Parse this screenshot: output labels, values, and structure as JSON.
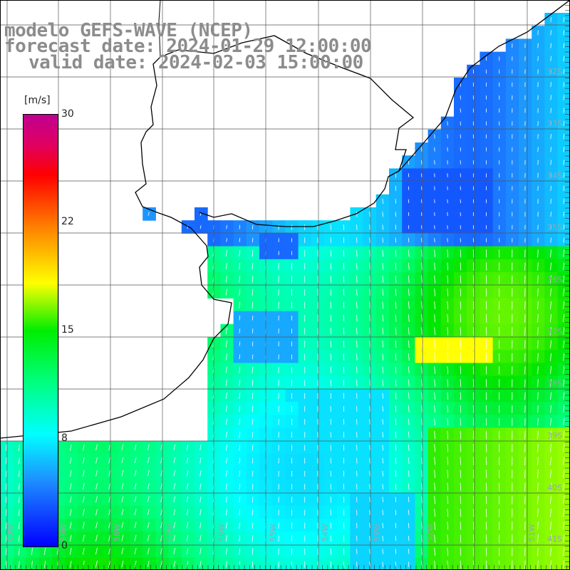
{
  "title": {
    "model": "modelo GEFS-WAVE (NCEP)",
    "forecast": "forecast date: 2024-01-29 12:00:00",
    "valid": "valid date: 2024-02-03 15:00:00"
  },
  "colorbar": {
    "unit": "[m/s]",
    "ticks": [
      "0",
      "8",
      "15",
      "22",
      "30"
    ]
  },
  "lat_labels": [
    "32S",
    "33S",
    "34S",
    "35S",
    "36S",
    "37S",
    "38S",
    "39S",
    "40S",
    "41S"
  ],
  "lon_labels": [
    "60W",
    "59W",
    "58W",
    "57W",
    "56W",
    "55W",
    "54W",
    "53W",
    "52W",
    "51W"
  ],
  "colors": {
    "land": "#ffffff",
    "grid": "#555555",
    "coast": "#000000",
    "arrows": "#ffffff",
    "title": "#8c8c8c"
  }
}
